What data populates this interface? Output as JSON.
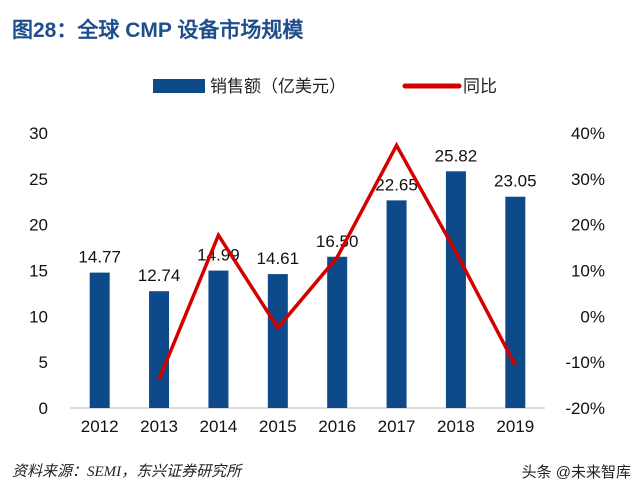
{
  "title": "图28：全球 CMP 设备市场规模",
  "source": "资料来源：SEMI，东兴证券研究所",
  "watermark": "头条 @未来智库",
  "chart_data": {
    "type": "bar+line",
    "categories": [
      "2012",
      "2013",
      "2014",
      "2015",
      "2016",
      "2017",
      "2018",
      "2019"
    ],
    "series": [
      {
        "name": "销售额（亿美元）",
        "type": "bar",
        "axis": "left",
        "color": "#0e4a8a",
        "values": [
          14.77,
          12.74,
          14.99,
          14.61,
          16.5,
          22.65,
          25.82,
          23.05
        ],
        "labels": [
          "14.77",
          "12.74",
          "14.99",
          "14.61",
          "16.50",
          "22.65",
          "25.82",
          "23.05"
        ]
      },
      {
        "name": "同比",
        "type": "line",
        "axis": "right",
        "color": "#d40000",
        "values": [
          null,
          -13.7,
          17.7,
          -2.5,
          12.9,
          37.3,
          14.0,
          -10.7
        ]
      }
    ],
    "left_axis": {
      "ylim": [
        0,
        30
      ],
      "ticks": [
        "0",
        "5",
        "10",
        "15",
        "20",
        "25",
        "30"
      ]
    },
    "right_axis": {
      "ylim": [
        -20,
        40
      ],
      "ticks": [
        "-20%",
        "-10%",
        "0%",
        "10%",
        "20%",
        "30%",
        "40%"
      ]
    },
    "legend_placement": "top",
    "grid": false
  }
}
